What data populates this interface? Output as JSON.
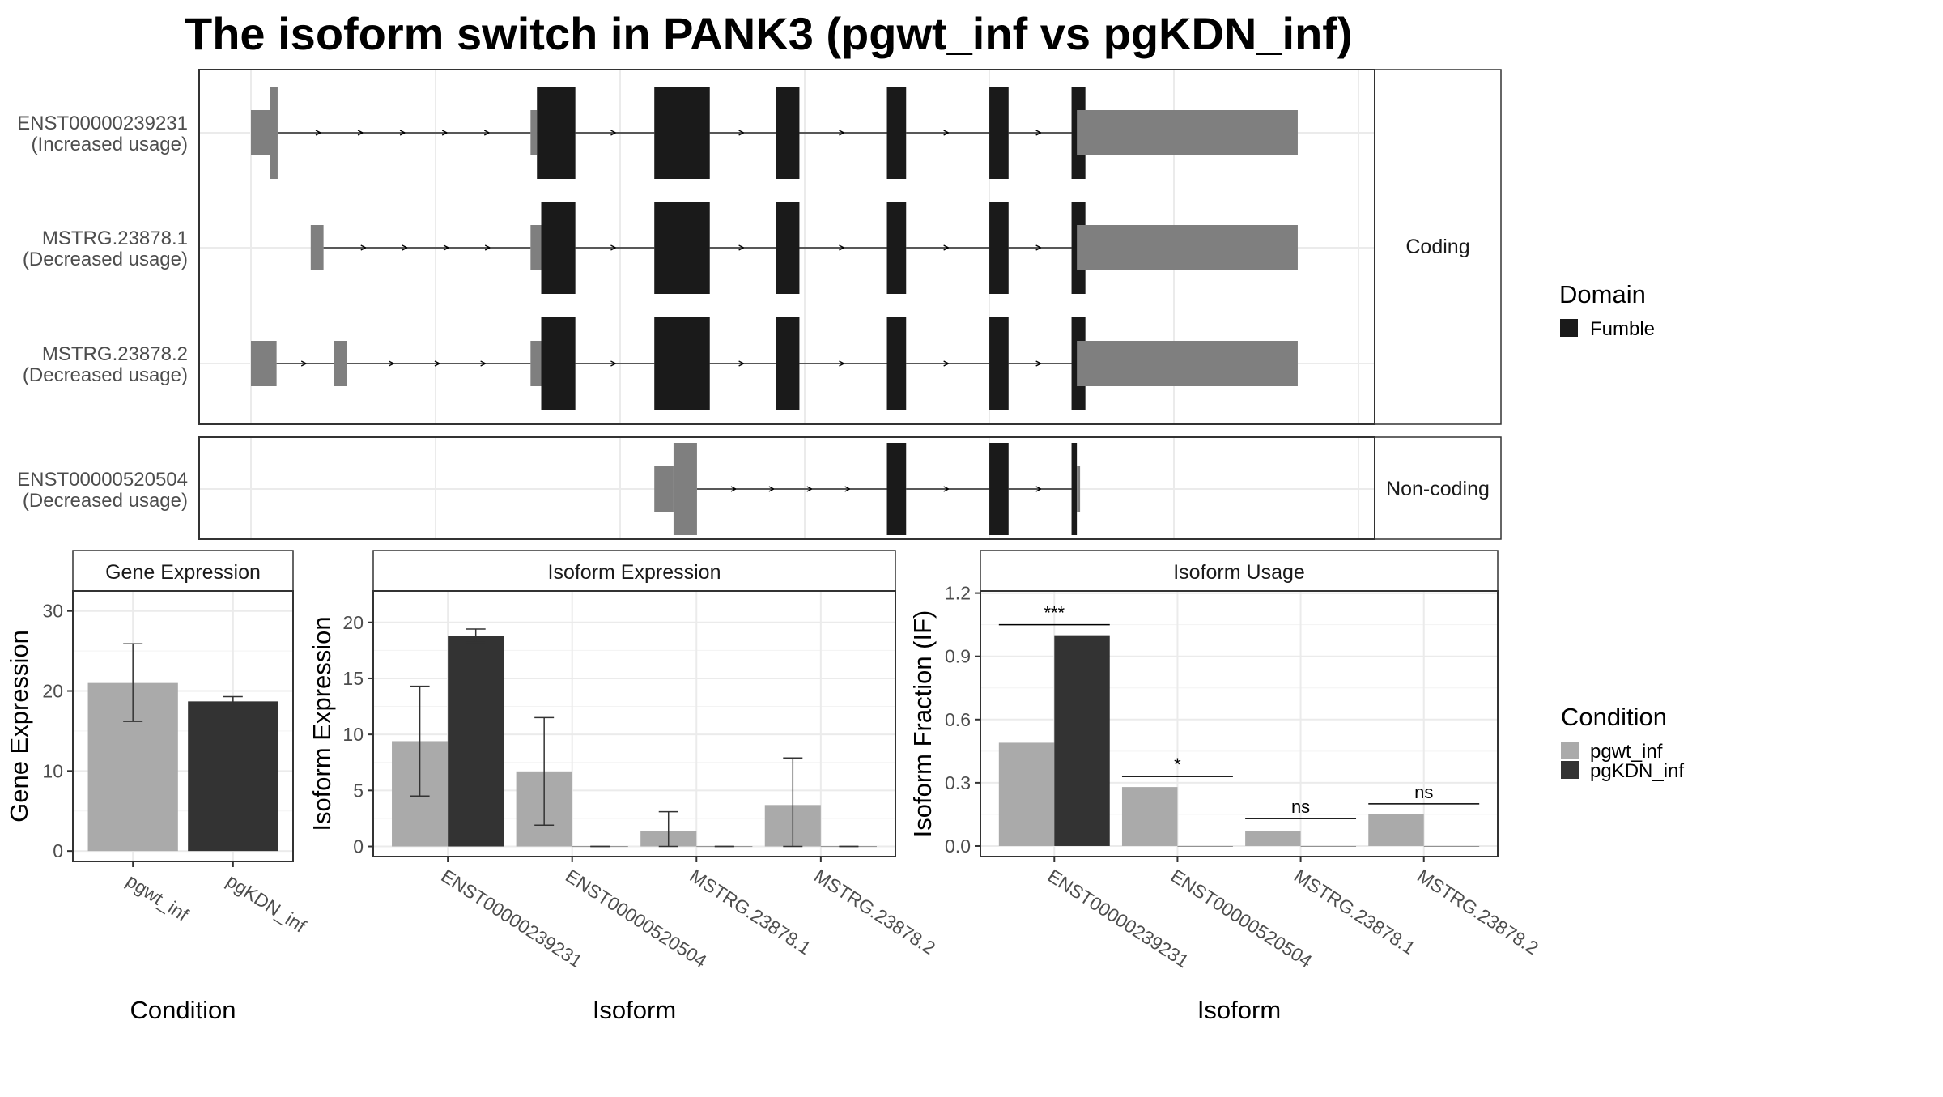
{
  "title": "The isoform switch in PANK3 (pgwt_inf vs pgKDN_inf)",
  "colors": {
    "utr": "#7f7f7f",
    "domain": "#1a1a1a",
    "cond1": "#aaaaaa",
    "cond2": "#333333"
  },
  "structure": {
    "x_range": [
      0,
      1000
    ],
    "coding_strip": "Coding",
    "noncoding_strip": "Non-coding",
    "transcripts": [
      {
        "name": "ENST00000239231",
        "note": "(Increased usage)",
        "group": "coding",
        "utr": [
          [
            0,
            18
          ],
          [
            18,
            25
          ],
          [
            262,
            268
          ],
          [
            774,
            981
          ]
        ],
        "cds": [
          [
            268,
            304
          ],
          [
            378,
            430
          ],
          [
            492,
            514
          ],
          [
            596,
            614
          ],
          [
            692,
            710
          ],
          [
            769,
            782
          ]
        ]
      },
      {
        "name": "MSTRG.23878.1",
        "note": "(Decreased usage)",
        "group": "coding",
        "utr": [
          [
            56,
            68
          ],
          [
            262,
            272
          ],
          [
            774,
            981
          ]
        ],
        "cds": [
          [
            272,
            304
          ],
          [
            378,
            430
          ],
          [
            492,
            514
          ],
          [
            596,
            614
          ],
          [
            692,
            710
          ],
          [
            769,
            782
          ]
        ]
      },
      {
        "name": "MSTRG.23878.2",
        "note": "(Decreased usage)",
        "group": "coding",
        "utr": [
          [
            0,
            24
          ],
          [
            78,
            90
          ],
          [
            262,
            272
          ],
          [
            774,
            981
          ]
        ],
        "cds": [
          [
            272,
            304
          ],
          [
            378,
            430
          ],
          [
            492,
            514
          ],
          [
            596,
            614
          ],
          [
            692,
            710
          ],
          [
            769,
            782
          ]
        ]
      },
      {
        "name": "ENST00000520504",
        "note": "(Decreased usage)",
        "group": "noncoding",
        "exons": [
          [
            378,
            396
          ],
          [
            396,
            418
          ],
          [
            596,
            614
          ],
          [
            692,
            710
          ],
          [
            769,
            774
          ],
          [
            774,
            777
          ]
        ]
      }
    ]
  },
  "domain_legend": {
    "title": "Domain",
    "items": [
      {
        "label": "Fumble"
      }
    ]
  },
  "condition_legend": {
    "title": "Condition",
    "items": [
      {
        "label": "pgwt_inf"
      },
      {
        "label": "pgKDN_inf"
      }
    ]
  },
  "chart_data": [
    {
      "type": "bar",
      "strip": "Gene Expression",
      "categories": [
        "pgwt_inf",
        "pgKDN_inf"
      ],
      "values": [
        21.0,
        18.7
      ],
      "error_low": [
        16.2,
        18.1
      ],
      "error_high": [
        25.9,
        19.3
      ],
      "xlabel": "Condition",
      "ylabel": "Gene Expression",
      "ylim": [
        -1.3,
        32.5
      ],
      "yticks": [
        0,
        10,
        20,
        30
      ]
    },
    {
      "type": "bar",
      "strip": "Isoform Expression",
      "categories": [
        "ENST00000239231",
        "ENST00000520504",
        "MSTRG.23878.1",
        "MSTRG.23878.2"
      ],
      "series": [
        {
          "name": "pgwt_inf",
          "values": [
            9.4,
            6.7,
            1.4,
            3.7
          ],
          "error_low": [
            4.5,
            1.9,
            0.0,
            0.0
          ],
          "error_high": [
            14.3,
            11.5,
            3.1,
            7.9
          ]
        },
        {
          "name": "pgKDN_inf",
          "values": [
            18.8,
            0.0,
            0.0,
            0.0
          ],
          "error_low": [
            18.2,
            0.0,
            0.0,
            0.0
          ],
          "error_high": [
            19.4,
            0.0,
            0.0,
            0.0
          ]
        }
      ],
      "xlabel": "Isoform",
      "ylabel": "Isoform Expression",
      "ylim": [
        -0.9,
        22.8
      ],
      "yticks": [
        0,
        5,
        10,
        15,
        20
      ]
    },
    {
      "type": "bar",
      "strip": "Isoform Usage",
      "categories": [
        "ENST00000239231",
        "ENST00000520504",
        "MSTRG.23878.1",
        "MSTRG.23878.2"
      ],
      "series": [
        {
          "name": "pgwt_inf",
          "values": [
            0.49,
            0.28,
            0.07,
            0.15
          ]
        },
        {
          "name": "pgKDN_inf",
          "values": [
            1.0,
            0.0,
            0.0,
            0.0
          ]
        }
      ],
      "significance": [
        "***",
        "*",
        "ns",
        "ns"
      ],
      "significance_y": [
        1.05,
        0.33,
        0.13,
        0.2
      ],
      "xlabel": "Isoform",
      "ylabel": "Isoform Fraction (IF)",
      "ylim": [
        -0.05,
        1.21
      ],
      "yticks": [
        "0.0",
        "0.3",
        "0.6",
        "0.9",
        "1.2"
      ]
    }
  ]
}
